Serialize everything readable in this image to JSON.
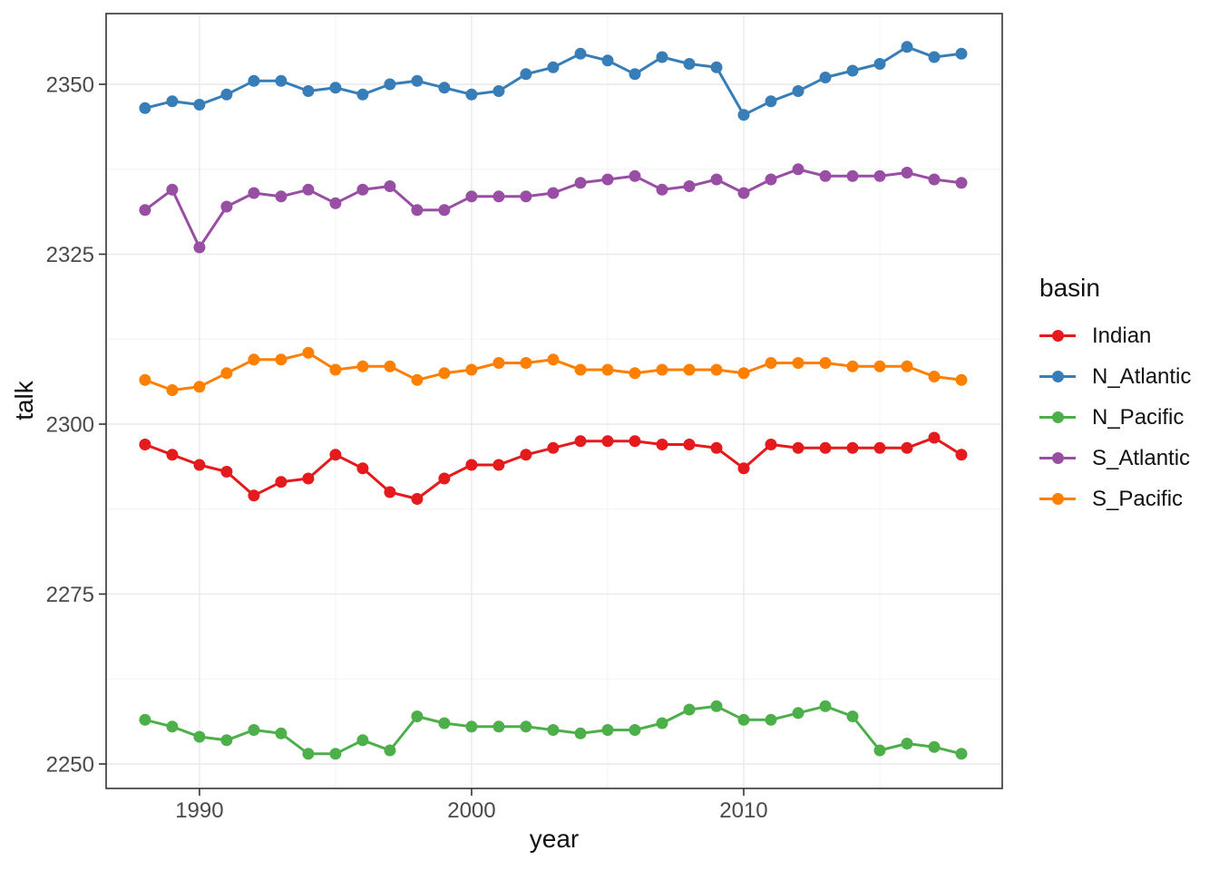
{
  "chart_data": {
    "type": "line",
    "title": "",
    "xlabel": "year",
    "ylabel": "talk",
    "legend_title": "basin",
    "legend_position": "right",
    "grid": true,
    "xlim": [
      1986.57,
      2019.5
    ],
    "ylim": [
      2246.4,
      2360.4
    ],
    "x_ticks": {
      "major": [
        1990,
        2000,
        2010
      ],
      "minor": [
        1995,
        2005,
        2015
      ]
    },
    "y_ticks": {
      "major": [
        2250,
        2275,
        2300,
        2325,
        2350
      ],
      "minor": [
        2262.5,
        2287.5,
        2312.5,
        2337.5
      ]
    },
    "x": [
      1988,
      1989,
      1990,
      1991,
      1992,
      1993,
      1994,
      1995,
      1996,
      1997,
      1998,
      1999,
      2000,
      2001,
      2002,
      2003,
      2004,
      2005,
      2006,
      2007,
      2008,
      2009,
      2010,
      2011,
      2012,
      2013,
      2014,
      2015,
      2016,
      2017,
      2018
    ],
    "series": [
      {
        "name": "Indian",
        "color": "#E41A1C",
        "values": [
          2297,
          2295.5,
          2294,
          2293,
          2289.5,
          2291.5,
          2292,
          2295.5,
          2293.5,
          2290,
          2289,
          2292,
          2294,
          2294,
          2295.5,
          2296.5,
          2297.5,
          2297.5,
          2297.5,
          2297,
          2297,
          2296.5,
          2293.5,
          2297,
          2296.5,
          2296.5,
          2296.5,
          2296.5,
          2296.5,
          2298,
          2295.5
        ]
      },
      {
        "name": "N_Atlantic",
        "color": "#377EB8",
        "values": [
          2346.5,
          2347.5,
          2347,
          2348.5,
          2350.5,
          2350.5,
          2349,
          2349.5,
          2348.5,
          2350,
          2350.5,
          2349.5,
          2348.5,
          2349,
          2351.5,
          2352.5,
          2354.5,
          2353.5,
          2351.5,
          2354,
          2353,
          2352.5,
          2345.5,
          2347.5,
          2349,
          2351,
          2352,
          2353,
          2355.5,
          2354,
          2354.5
        ]
      },
      {
        "name": "N_Pacific",
        "color": "#4DAF4A",
        "values": [
          2256.5,
          2255.5,
          2254,
          2253.5,
          2255,
          2254.5,
          2251.5,
          2251.5,
          2253.5,
          2252,
          2257,
          2256,
          2255.5,
          2255.5,
          2255.5,
          2255,
          2254.5,
          2255,
          2255,
          2256,
          2258,
          2258.5,
          2256.5,
          2256.5,
          2257.5,
          2258.5,
          2257,
          2252,
          2253,
          2252.5,
          2251.5
        ]
      },
      {
        "name": "S_Atlantic",
        "color": "#984EA3",
        "values": [
          2331.5,
          2334.5,
          2326,
          2332,
          2334,
          2333.5,
          2334.5,
          2332.5,
          2334.5,
          2335,
          2331.5,
          2331.5,
          2333.5,
          2333.5,
          2333.5,
          2334,
          2335.5,
          2336,
          2336.5,
          2334.5,
          2335,
          2336,
          2334,
          2336,
          2337.5,
          2336.5,
          2336.5,
          2336.5,
          2337,
          2336,
          2335.5
        ]
      },
      {
        "name": "S_Pacific",
        "color": "#FF7F00",
        "values": [
          2306.5,
          2305,
          2305.5,
          2307.5,
          2309.5,
          2309.5,
          2310.5,
          2308,
          2308.5,
          2308.5,
          2306.5,
          2307.5,
          2308,
          2309,
          2309,
          2309.5,
          2308,
          2308,
          2307.5,
          2308,
          2308,
          2308,
          2307.5,
          2309,
          2309,
          2309,
          2308.5,
          2308.5,
          2308.5,
          2307,
          2306.5
        ]
      }
    ]
  },
  "style": {
    "background": "#ffffff",
    "grid_major": "#e9e9e9",
    "grid_minor": "#f3f3f3",
    "panel_border": "#333333",
    "tick_color": "#333333",
    "tick_label_color": "#4a4a4a",
    "text_color": "#111111"
  }
}
